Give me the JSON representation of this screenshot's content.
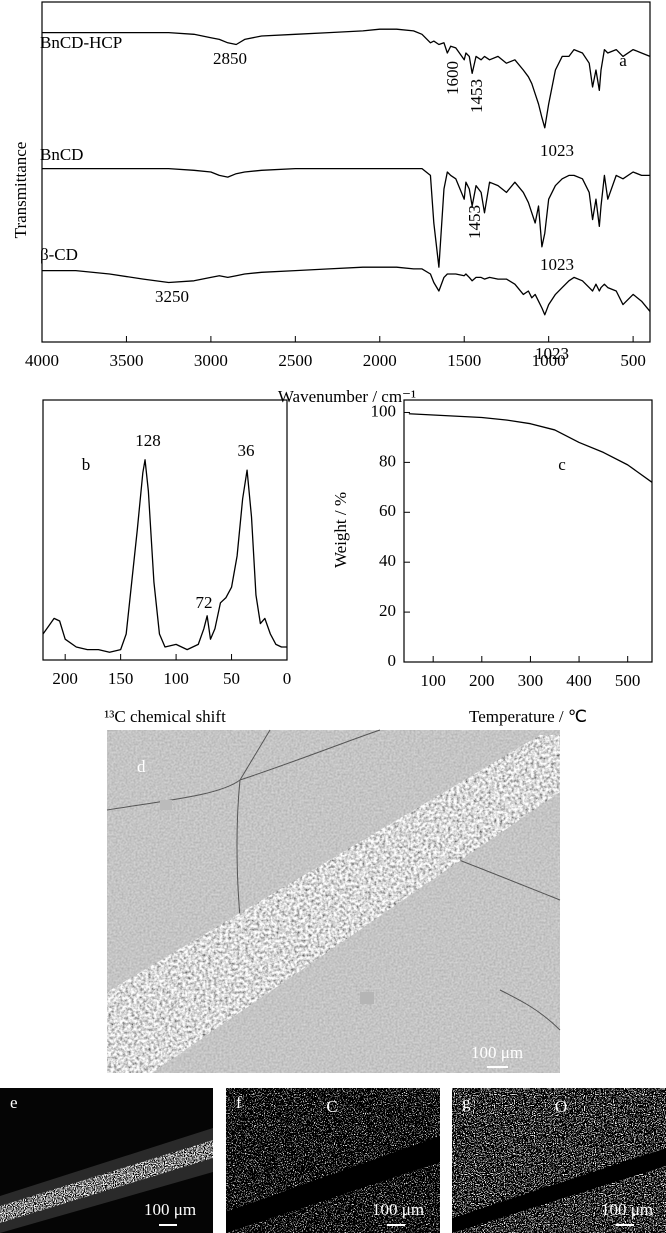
{
  "chart_data": [
    {
      "type": "line",
      "xlabel": "Wavenumber / cm⁻¹",
      "ylabel": "Transmittance",
      "xlim": [
        4000,
        400
      ],
      "ylim": [
        0,
        100
      ],
      "xticks": [
        4000,
        3500,
        3000,
        2500,
        2000,
        1500,
        1000,
        500
      ],
      "x": [
        4000,
        3800,
        3600,
        3400,
        3250,
        3100,
        3000,
        2950,
        2900,
        2850,
        2800,
        2700,
        2500,
        2300,
        2100,
        2000,
        1900,
        1800,
        1750,
        1700,
        1680,
        1650,
        1620,
        1600,
        1580,
        1550,
        1500,
        1490,
        1470,
        1453,
        1430,
        1400,
        1380,
        1350,
        1300,
        1250,
        1200,
        1150,
        1120,
        1100,
        1080,
        1060,
        1040,
        1023,
        1000,
        960,
        920,
        880,
        850,
        800,
        760,
        740,
        720,
        700,
        690,
        670,
        650,
        600,
        560,
        500,
        450,
        400
      ],
      "series": [
        {
          "name": "BnCD-HCP",
          "color": "#000000",
          "values": [
            91,
            91,
            91,
            91,
            91,
            90.5,
            89.5,
            89,
            88,
            87.5,
            89,
            90,
            90.5,
            91,
            91.5,
            92,
            92,
            91.5,
            90.5,
            88,
            88.5,
            87.5,
            88,
            85,
            87,
            86.5,
            83,
            85,
            84,
            79,
            84,
            83,
            84,
            83,
            84,
            82,
            83,
            80,
            78,
            76,
            73,
            70,
            66,
            63,
            70,
            80,
            84,
            84,
            86,
            85,
            82,
            75,
            80,
            74,
            80,
            86,
            85,
            86,
            84,
            86,
            85,
            84
          ]
        },
        {
          "name": "BnCD",
          "color": "#000000",
          "values": [
            51,
            51,
            51,
            51,
            51,
            50.5,
            50,
            49,
            48.5,
            49.5,
            50,
            50.5,
            51,
            51,
            51,
            51,
            51,
            51,
            51,
            49,
            35,
            22,
            45,
            50,
            49,
            48,
            42,
            47,
            45,
            40,
            46,
            44,
            38,
            47,
            46,
            44,
            47,
            44,
            41,
            38,
            35,
            40,
            28,
            32,
            42,
            46,
            48,
            49,
            49,
            48,
            44,
            36,
            42,
            34,
            40,
            49,
            42,
            49,
            48,
            50,
            49,
            49
          ]
        },
        {
          "name": "β-CD",
          "color": "#000000",
          "values": [
            21,
            21,
            20,
            18.5,
            17.5,
            18,
            19,
            19.5,
            19,
            19.5,
            20,
            20.5,
            21,
            21.5,
            22,
            22,
            22,
            21.5,
            21.5,
            20,
            17.5,
            15,
            19,
            20,
            20,
            20,
            19.5,
            20,
            19,
            18,
            19,
            19,
            18.5,
            19,
            18.5,
            18.5,
            17,
            14,
            15,
            13,
            14,
            12,
            10,
            8,
            11,
            14,
            16,
            18,
            19,
            18,
            16,
            15,
            17,
            15,
            16,
            17,
            16,
            15,
            11,
            14,
            12,
            9
          ]
        }
      ],
      "annotations": [
        "2850",
        "1600",
        "1453",
        "a",
        "1023",
        "1453",
        "1023",
        "3250",
        "1023"
      ]
    },
    {
      "type": "line",
      "xlabel": "¹³C chemical shift",
      "xlim": [
        220,
        0
      ],
      "ylim": [
        0,
        100
      ],
      "xticks": [
        200,
        150,
        100,
        50,
        0
      ],
      "x": [
        220,
        215,
        210,
        205,
        200,
        190,
        180,
        170,
        160,
        150,
        145,
        140,
        135,
        130,
        128,
        125,
        120,
        115,
        110,
        100,
        90,
        80,
        75,
        72,
        69,
        65,
        60,
        55,
        50,
        45,
        40,
        36,
        32,
        28,
        24,
        20,
        15,
        10,
        5,
        0
      ],
      "values": [
        10,
        13,
        16,
        15,
        8,
        5,
        4,
        4,
        3,
        4,
        10,
        30,
        50,
        72,
        77,
        65,
        30,
        10,
        5,
        6,
        4,
        6,
        12,
        17,
        8,
        12,
        22,
        24,
        28,
        40,
        62,
        73,
        55,
        25,
        14,
        16,
        10,
        6,
        5,
        5
      ],
      "color": "#000000",
      "annotations": [
        "b",
        "128",
        "72",
        "36"
      ]
    },
    {
      "type": "line",
      "xlabel": "Temperature / ℃",
      "ylabel": "Weight / %",
      "xlim": [
        40,
        550
      ],
      "ylim": [
        0,
        105
      ],
      "xticks": [
        100,
        200,
        300,
        400,
        500
      ],
      "yticks": [
        0,
        20,
        40,
        60,
        80,
        100
      ],
      "x": [
        50,
        100,
        150,
        200,
        250,
        300,
        350,
        400,
        450,
        500,
        550
      ],
      "values": [
        99.5,
        99,
        98.5,
        98,
        97,
        95.5,
        93,
        88,
        84,
        79,
        72
      ],
      "color": "#000000",
      "annotations": [
        "c"
      ]
    }
  ],
  "images": [
    {
      "label": "d",
      "scale": "100 μm"
    },
    {
      "label": "e",
      "scale": "100 μm"
    },
    {
      "label": "f",
      "element": "C",
      "scale": "100 μm"
    },
    {
      "label": "g",
      "element": "O",
      "scale": "100 μm"
    }
  ]
}
